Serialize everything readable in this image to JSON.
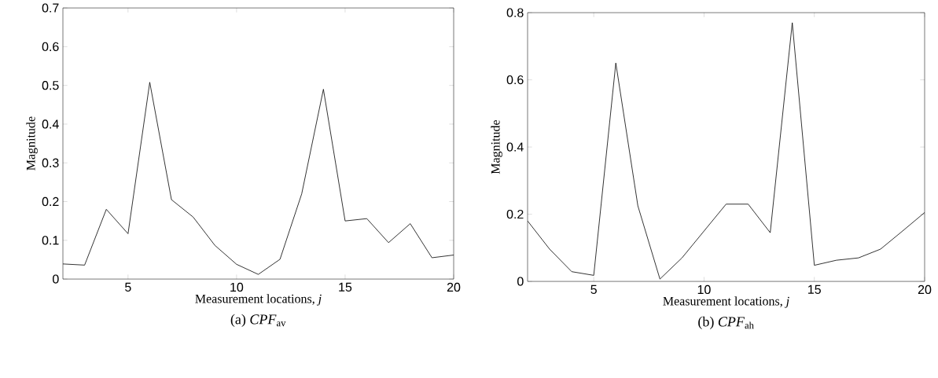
{
  "chart_data": [
    {
      "type": "line",
      "title": "(a) *CPF*$_{av}$",
      "xlabel": "Measurement locations, *j*",
      "ylabel": "Magnitude",
      "x": [
        2,
        3,
        4,
        5,
        6,
        7,
        8,
        9,
        10,
        11,
        12,
        13,
        14,
        15,
        16,
        17,
        18,
        19,
        20
      ],
      "values": [
        0.039,
        0.036,
        0.18,
        0.117,
        0.508,
        0.205,
        0.16,
        0.087,
        0.038,
        0.012,
        0.051,
        0.22,
        0.49,
        0.15,
        0.156,
        0.094,
        0.143,
        0.055,
        0.062
      ],
      "color": "#000000",
      "xlim": [
        2,
        20
      ],
      "ylim": [
        0,
        0.7
      ],
      "xticks": [
        5,
        10,
        15,
        20
      ],
      "yticks": [
        0,
        0.1,
        0.2,
        0.3,
        0.4,
        0.5,
        0.6,
        0.7
      ]
    },
    {
      "type": "line",
      "title": "(b) *CPF*$_{ah}$",
      "xlabel": "Measurement locations, *j*",
      "ylabel": "Magnitude",
      "x": [
        2,
        3,
        4,
        5,
        6,
        7,
        8,
        9,
        10,
        11,
        12,
        13,
        14,
        15,
        16,
        17,
        18,
        19,
        20
      ],
      "values": [
        0.18,
        0.096,
        0.029,
        0.018,
        0.65,
        0.225,
        0.007,
        0.07,
        0.15,
        0.23,
        0.23,
        0.145,
        0.77,
        0.048,
        0.063,
        0.07,
        0.096,
        0.15,
        0.205
      ],
      "color": "#000000",
      "xlim": [
        2,
        20
      ],
      "ylim": [
        0,
        0.8
      ],
      "xticks": [
        5,
        10,
        15,
        20
      ],
      "yticks": [
        0,
        0.2,
        0.4,
        0.6,
        0.8
      ]
    }
  ]
}
